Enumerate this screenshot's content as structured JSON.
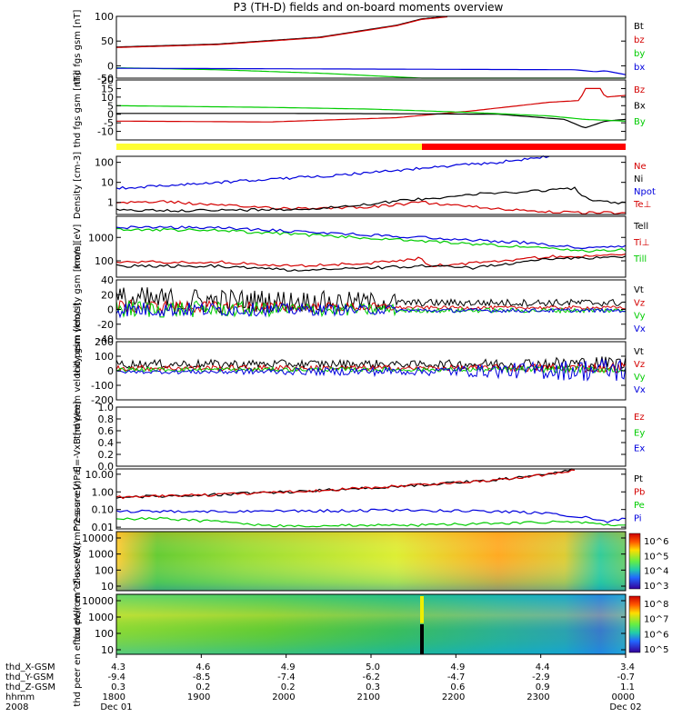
{
  "title": "P3 (TH-D) fields and on-board moments overview",
  "colors": {
    "black": "#000000",
    "red": "#d40000",
    "green": "#00cc00",
    "blue": "#0000dd",
    "yellow": "#ffff33",
    "bar_red": "#ff0000"
  },
  "chart_data": [
    {
      "type": "line",
      "ylabel": "thd fgs gsm [nT]",
      "ylim": [
        -25,
        100
      ],
      "yticks": [
        "100",
        "50",
        "0",
        "-50"
      ],
      "legend": [
        {
          "label": "Bt",
          "color": "black"
        },
        {
          "label": "bz",
          "color": "red"
        },
        {
          "label": "by",
          "color": "green"
        },
        {
          "label": "bx",
          "color": "blue"
        }
      ],
      "series": [
        {
          "name": "Bt",
          "color": "black",
          "x": [
            0,
            0.2,
            0.4,
            0.55,
            0.6,
            0.65
          ],
          "y": [
            38,
            44,
            58,
            82,
            95,
            100
          ]
        },
        {
          "name": "bz",
          "color": "red",
          "x": [
            0,
            0.2,
            0.4,
            0.55,
            0.6,
            0.65
          ],
          "y": [
            37,
            43,
            57,
            81,
            94,
            99
          ]
        },
        {
          "name": "by",
          "color": "green",
          "x": [
            0,
            0.2,
            0.4,
            0.6,
            0.75,
            0.9,
            0.95,
            1
          ],
          "y": [
            -4,
            -8,
            -15,
            -25,
            -32,
            -38,
            -39,
            -38
          ]
        },
        {
          "name": "bx",
          "color": "blue",
          "x": [
            0,
            0.3,
            0.6,
            0.9,
            0.94,
            0.96,
            1
          ],
          "y": [
            -5,
            -6,
            -7,
            -8,
            -12,
            -10,
            -18
          ]
        }
      ]
    },
    {
      "type": "line",
      "ylabel": "thd fgs gsm [nT]",
      "ylim": [
        -15,
        20
      ],
      "yticks": [
        "20",
        "15",
        "10",
        "5",
        "0",
        "-5",
        "-10"
      ],
      "legend": [
        {
          "label": "Bz",
          "color": "red"
        },
        {
          "label": "Bx",
          "color": "black"
        },
        {
          "label": "By",
          "color": "green"
        }
      ],
      "series": [
        {
          "name": "Bz",
          "color": "red",
          "x": [
            0,
            0.3,
            0.55,
            0.7,
            0.85,
            0.91,
            0.92,
            0.95,
            0.96,
            1
          ],
          "y": [
            -4,
            -4.5,
            -2,
            2,
            7,
            8,
            15,
            15,
            10,
            11
          ]
        },
        {
          "name": "Bx",
          "color": "black",
          "x": [
            0,
            0.3,
            0.55,
            0.75,
            0.88,
            0.92,
            0.96,
            1
          ],
          "y": [
            0.5,
            0.5,
            0.3,
            0,
            -3,
            -8,
            -4,
            -3
          ]
        },
        {
          "name": "By",
          "color": "green",
          "x": [
            0,
            0.3,
            0.5,
            0.7,
            0.85,
            0.92,
            1
          ],
          "y": [
            5,
            4,
            3,
            1,
            -1,
            -3,
            -4
          ]
        }
      ]
    },
    {
      "type": "table",
      "bar": [
        {
          "from": 0,
          "to": 0.6,
          "color": "yellow"
        },
        {
          "from": 0.6,
          "to": 1,
          "color": "bar_red"
        }
      ]
    },
    {
      "type": "line",
      "ylabel": "Density [cm-3]",
      "yscale": "log",
      "ylim": [
        0.25,
        200
      ],
      "yticks": [
        "100",
        "10",
        "1"
      ],
      "legend": [
        {
          "label": "Ne",
          "color": "red"
        },
        {
          "label": "Ni",
          "color": "black"
        },
        {
          "label": "Npot",
          "color": "blue"
        },
        {
          "label": "Te⊥",
          "color": "red"
        }
      ],
      "series": [
        {
          "name": "Ne",
          "color": "red",
          "x": [
            0,
            0.1,
            0.2,
            0.35,
            0.5,
            0.6,
            0.7,
            0.8,
            0.9,
            1
          ],
          "y": [
            1,
            1.1,
            0.7,
            0.5,
            0.6,
            1,
            0.6,
            0.4,
            0.3,
            0.3
          ]
        },
        {
          "name": "Ni",
          "color": "black",
          "x": [
            0,
            0.2,
            0.4,
            0.6,
            0.7,
            0.8,
            0.9,
            0.93,
            1
          ],
          "y": [
            0.4,
            0.4,
            0.5,
            1.5,
            2.5,
            3.5,
            5,
            1.2,
            0.9
          ]
        },
        {
          "name": "Npot",
          "color": "blue",
          "x": [
            0,
            0.2,
            0.4,
            0.6,
            0.75,
            0.85
          ],
          "y": [
            5,
            10,
            20,
            50,
            100,
            200
          ]
        }
      ]
    },
    {
      "type": "line",
      "ylabel": "mom [eV]",
      "yscale": "log",
      "ylim": [
        20,
        8000
      ],
      "yticks": [
        "1000",
        "100"
      ],
      "legend": [
        {
          "label": "Tell",
          "color": "black"
        },
        {
          "label": "Ti⊥",
          "color": "red"
        },
        {
          "label": "Till",
          "color": "green"
        }
      ],
      "series": [
        {
          "name": "Tpar",
          "color": "green",
          "x": [
            0,
            0.2,
            0.4,
            0.6,
            0.8,
            0.92,
            1
          ],
          "y": [
            2200,
            2000,
            1200,
            700,
            400,
            250,
            300
          ]
        },
        {
          "name": "Ti",
          "color": "blue",
          "x": [
            0,
            0.2,
            0.4,
            0.6,
            0.8,
            0.92,
            1
          ],
          "y": [
            2700,
            2600,
            1600,
            1000,
            600,
            350,
            400
          ]
        },
        {
          "name": "Te",
          "color": "red",
          "x": [
            0,
            0.2,
            0.35,
            0.5,
            0.6,
            0.61,
            0.7,
            0.85,
            1
          ],
          "y": [
            90,
            90,
            60,
            80,
            130,
            60,
            80,
            150,
            180
          ]
        },
        {
          "name": "Tell",
          "color": "black",
          "x": [
            0,
            0.2,
            0.35,
            0.5,
            0.6,
            0.7,
            0.85,
            1
          ],
          "y": [
            60,
            60,
            40,
            50,
            60,
            50,
            120,
            150
          ]
        }
      ]
    },
    {
      "type": "line",
      "ylabel": "thd peim velocity gsm [km/s]",
      "ylim": [
        -40,
        40
      ],
      "yticks": [
        "40",
        "20",
        "0",
        "-20",
        "-40"
      ],
      "legend": [
        {
          "label": "Vt",
          "color": "black"
        },
        {
          "label": "Vz",
          "color": "red"
        },
        {
          "label": "Vy",
          "color": "green"
        },
        {
          "label": "Vx",
          "color": "blue"
        }
      ]
    },
    {
      "type": "line",
      "ylabel": "thd peem velocity gsm [km/s]",
      "ylim": [
        -200,
        200
      ],
      "yticks": [
        "200",
        "100",
        "0",
        "-100",
        "-200"
      ],
      "legend": [
        {
          "label": "Vt",
          "color": "black"
        },
        {
          "label": "Vz",
          "color": "red"
        },
        {
          "label": "Vy",
          "color": "green"
        },
        {
          "label": "Vx",
          "color": "blue"
        }
      ]
    },
    {
      "type": "line",
      "ylabel": "E=-VxB [mV/m]",
      "ylim": [
        0,
        1
      ],
      "yticks": [
        "1.0",
        "0.8",
        "0.6",
        "0.4",
        "0.2",
        "0.0"
      ],
      "legend": [
        {
          "label": "Ez",
          "color": "red"
        },
        {
          "label": "Ey",
          "color": "green"
        },
        {
          "label": "Ex",
          "color": "blue"
        }
      ]
    },
    {
      "type": "line",
      "ylabel": "Pressure [nPa]",
      "yscale": "log",
      "ylim": [
        0.008,
        20
      ],
      "yticks": [
        "10.00",
        "1.00",
        "0.10",
        "0.01"
      ],
      "legend": [
        {
          "label": "Pt",
          "color": "black"
        },
        {
          "label": "Pb",
          "color": "red"
        },
        {
          "label": "Pe",
          "color": "green"
        },
        {
          "label": "Pi",
          "color": "blue"
        }
      ],
      "series": [
        {
          "name": "Pt",
          "color": "black",
          "x": [
            0,
            0.2,
            0.4,
            0.6,
            0.75,
            0.85,
            0.9
          ],
          "y": [
            0.5,
            0.7,
            1.2,
            2.5,
            5,
            10,
            18
          ]
        },
        {
          "name": "Pb",
          "color": "red",
          "x": [
            0,
            0.2,
            0.4,
            0.6,
            0.75,
            0.85,
            0.9
          ],
          "y": [
            0.49,
            0.69,
            1.19,
            2.49,
            4.9,
            9.9,
            17
          ]
        },
        {
          "name": "Pi",
          "color": "blue",
          "x": [
            0,
            0.2,
            0.4,
            0.6,
            0.8,
            0.92,
            0.96,
            1
          ],
          "y": [
            0.08,
            0.08,
            0.085,
            0.09,
            0.07,
            0.04,
            0.02,
            0.03
          ]
        },
        {
          "name": "Pe",
          "color": "green",
          "x": [
            0,
            0.1,
            0.2,
            0.3,
            0.6,
            0.8,
            0.9,
            1
          ],
          "y": [
            0.03,
            0.03,
            0.02,
            0.012,
            0.013,
            0.018,
            0.02,
            0.012
          ]
        }
      ]
    },
    {
      "type": "heatmap",
      "ylabel": "thd peir en eflux eV/(cm^2-s-sr-eV)",
      "yticks": [
        "10000",
        "1000",
        "100",
        "10"
      ],
      "colorbar": [
        "10^6",
        "10^5",
        "10^4",
        "10^3"
      ]
    },
    {
      "type": "heatmap",
      "ylabel": "thd peer en eflux eV/(cm^2-s-sr-eV)",
      "yticks": [
        "10000",
        "1000",
        "100",
        "10"
      ],
      "colorbar": [
        "10^8",
        "10^7",
        "10^6",
        "10^5"
      ]
    }
  ],
  "xaxis": {
    "row_labels": [
      "thd_X-GSM",
      "thd_Y-GSM",
      "thd_Z-GSM",
      "hhmm",
      "2008"
    ],
    "columns": [
      [
        "4.3",
        "-9.4",
        "0.3",
        "1800",
        "Dec 01"
      ],
      [
        "4.6",
        "-8.5",
        "0.2",
        "1900",
        ""
      ],
      [
        "4.9",
        "-7.4",
        "0.2",
        "2000",
        ""
      ],
      [
        "5.0",
        "-6.2",
        "0.3",
        "2100",
        ""
      ],
      [
        "4.9",
        "-4.7",
        "0.6",
        "2200",
        ""
      ],
      [
        "4.4",
        "-2.9",
        "0.9",
        "2300",
        ""
      ],
      [
        "3.4",
        "-0.7",
        "1.1",
        "0000",
        "Dec 02"
      ]
    ]
  }
}
